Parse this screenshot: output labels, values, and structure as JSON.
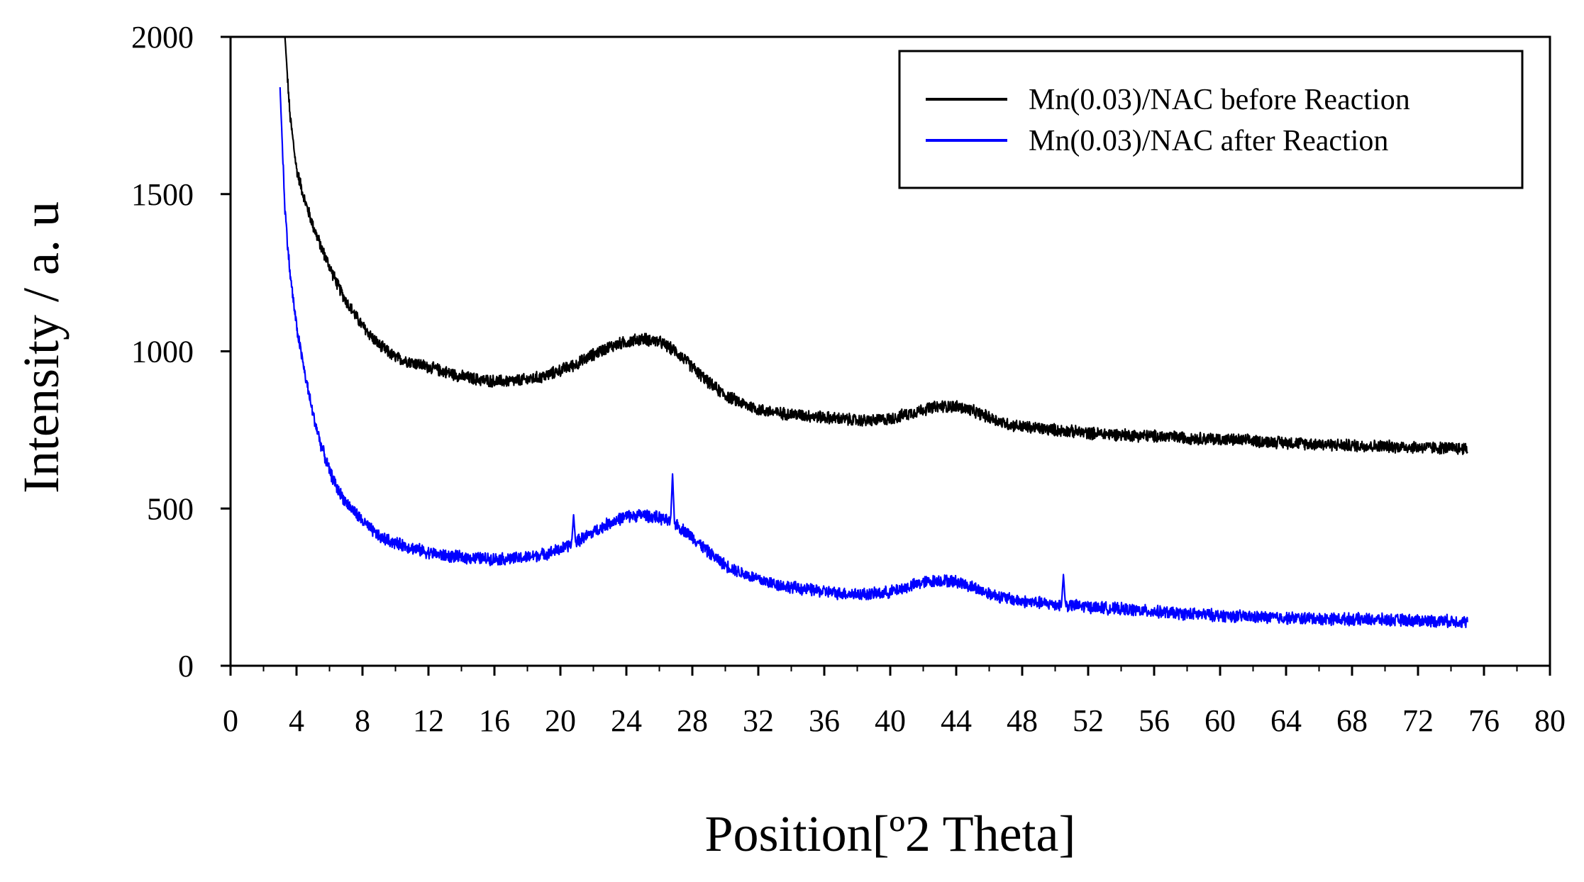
{
  "chart_data": {
    "type": "line",
    "title": "",
    "xlabel": "Position[º2 Theta]",
    "ylabel": "Intensity / a. u",
    "xlim": [
      0,
      80
    ],
    "ylim": [
      0,
      2000
    ],
    "xticks": [
      0,
      4,
      8,
      12,
      16,
      20,
      24,
      28,
      32,
      36,
      40,
      44,
      48,
      52,
      56,
      60,
      64,
      68,
      72,
      76,
      80
    ],
    "yticks": [
      0,
      500,
      1000,
      1500,
      2000
    ],
    "xtick_labels": [
      "0",
      "4",
      "8",
      "12",
      "16",
      "20",
      "24",
      "28",
      "32",
      "36",
      "40",
      "44",
      "48",
      "52",
      "56",
      "60",
      "64",
      "68",
      "72",
      "76",
      "80"
    ],
    "ytick_labels": [
      "0",
      "500",
      "1000",
      "1500",
      "2000"
    ],
    "grid": false,
    "legend_position": "top-right",
    "series": [
      {
        "name": "Mn(0.03)/NAC before Reaction",
        "color": "#000000",
        "noise": 22,
        "x": [
          3.3,
          3.6,
          4.0,
          4.5,
          5.0,
          5.5,
          6.0,
          6.5,
          7.0,
          7.5,
          8.0,
          9.0,
          10.0,
          11.0,
          12.0,
          13.0,
          14.0,
          15.0,
          16.0,
          17.0,
          18.0,
          19.0,
          20.0,
          21.0,
          22.0,
          23.0,
          24.0,
          25.0,
          26.0,
          27.0,
          28.0,
          29.0,
          30.0,
          31.0,
          32.0,
          33.0,
          34.0,
          35.0,
          36.0,
          37.0,
          38.0,
          39.0,
          40.0,
          41.0,
          42.0,
          43.0,
          44.0,
          45.0,
          46.0,
          47.0,
          48.0,
          50.0,
          52.0,
          54.0,
          56.0,
          58.0,
          60.0,
          62.0,
          64.0,
          66.0,
          68.0,
          70.0,
          72.0,
          74.0,
          75.0
        ],
        "y": [
          2000,
          1750,
          1580,
          1480,
          1400,
          1330,
          1270,
          1210,
          1160,
          1120,
          1080,
          1020,
          980,
          965,
          950,
          935,
          920,
          910,
          905,
          905,
          910,
          920,
          940,
          960,
          990,
          1015,
          1030,
          1040,
          1030,
          1000,
          950,
          900,
          860,
          835,
          815,
          805,
          800,
          795,
          790,
          785,
          780,
          780,
          785,
          800,
          815,
          825,
          825,
          810,
          790,
          770,
          760,
          750,
          740,
          735,
          730,
          725,
          720,
          715,
          710,
          705,
          700,
          698,
          695,
          692,
          690
        ]
      },
      {
        "name": "Mn(0.03)/NAC after Reaction",
        "color": "#0000ff",
        "noise": 22,
        "x": [
          3.0,
          3.3,
          3.6,
          4.0,
          4.5,
          5.0,
          5.5,
          6.0,
          6.5,
          7.0,
          7.5,
          8.0,
          9.0,
          10.0,
          11.0,
          12.0,
          13.0,
          14.0,
          15.0,
          16.0,
          17.0,
          18.0,
          19.0,
          20.0,
          21.0,
          22.0,
          23.0,
          24.0,
          25.0,
          26.0,
          27.0,
          28.0,
          29.0,
          30.0,
          31.0,
          32.0,
          33.0,
          34.0,
          35.0,
          36.0,
          37.0,
          38.0,
          39.0,
          40.0,
          41.0,
          42.0,
          43.0,
          44.0,
          45.0,
          46.0,
          47.0,
          48.0,
          50.0,
          52.0,
          54.0,
          56.0,
          58.0,
          60.0,
          62.0,
          64.0,
          66.0,
          68.0,
          70.0,
          72.0,
          74.0,
          75.0
        ],
        "y": [
          1840,
          1450,
          1250,
          1080,
          930,
          800,
          700,
          620,
          560,
          520,
          490,
          460,
          410,
          390,
          375,
          360,
          350,
          345,
          342,
          340,
          340,
          345,
          355,
          370,
          395,
          425,
          455,
          475,
          480,
          470,
          450,
          410,
          360,
          320,
          295,
          275,
          260,
          250,
          242,
          236,
          230,
          228,
          228,
          235,
          250,
          265,
          272,
          268,
          250,
          230,
          215,
          205,
          195,
          188,
          180,
          172,
          165,
          160,
          155,
          152,
          150,
          148,
          146,
          144,
          142,
          140
        ],
        "spikes": [
          {
            "x": 20.8,
            "y": 480
          },
          {
            "x": 26.8,
            "y": 610
          },
          {
            "x": 50.5,
            "y": 290
          }
        ]
      }
    ]
  }
}
